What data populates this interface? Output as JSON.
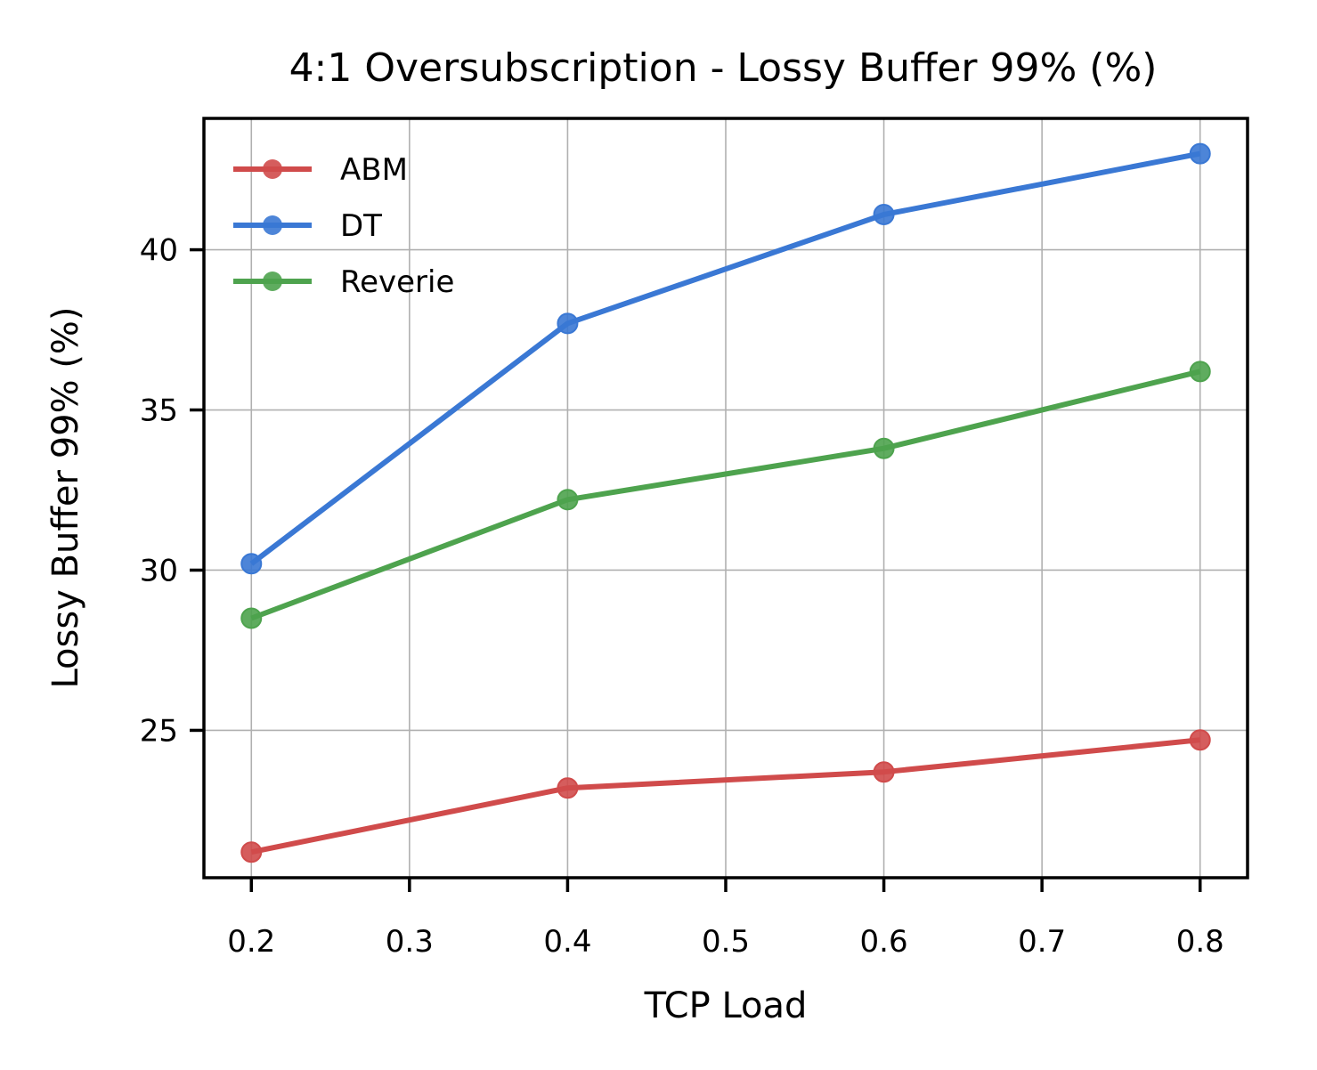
{
  "chart_data": {
    "type": "line",
    "title": "4:1 Oversubscription - Lossy Buffer 99% (%)",
    "xlabel": "TCP Load",
    "ylabel": "Lossy Buffer 99% (%)",
    "x": [
      0.2,
      0.4,
      0.6,
      0.8
    ],
    "xticks": [
      "0.2",
      "0.3",
      "0.4",
      "0.5",
      "0.6",
      "0.7",
      "0.8"
    ],
    "xtick_values": [
      0.2,
      0.3,
      0.4,
      0.5,
      0.6,
      0.7,
      0.8
    ],
    "yticks": [
      "25",
      "30",
      "35",
      "40"
    ],
    "ytick_values": [
      25,
      30,
      35,
      40
    ],
    "xlim": [
      0.17,
      0.83
    ],
    "ylim": [
      20.4,
      44.1
    ],
    "grid": true,
    "legend_position": "top-left",
    "series": [
      {
        "name": "ABM",
        "color": "#d04b4b",
        "values": [
          21.2,
          23.2,
          23.7,
          24.7
        ]
      },
      {
        "name": "DT",
        "color": "#3a78d4",
        "values": [
          30.2,
          37.7,
          41.1,
          43.0
        ]
      },
      {
        "name": "Reverie",
        "color": "#4ea34e",
        "values": [
          28.5,
          32.2,
          33.8,
          36.2
        ]
      }
    ]
  }
}
